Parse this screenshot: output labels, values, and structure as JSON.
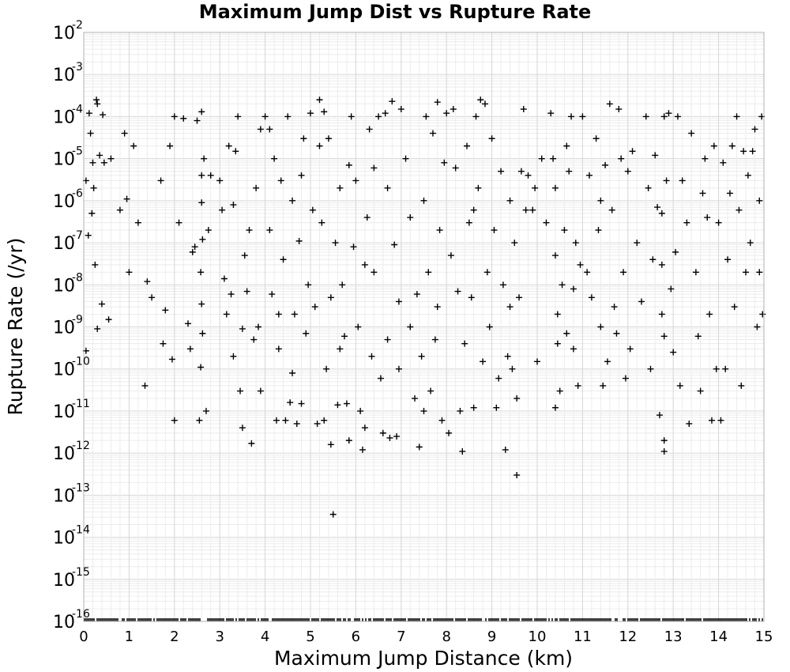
{
  "chart_data": {
    "type": "scatter",
    "title": "Maximum Jump Dist vs Rupture Rate",
    "xlabel": "Maximum Jump Distance (km)",
    "ylabel": "Rupture Rate (/yr)",
    "xlim": [
      0,
      15
    ],
    "ylim": [
      1e-16,
      0.01
    ],
    "y_scale": "log",
    "grid": true,
    "marker": "plus",
    "marker_color": "#000000",
    "x_ticks": [
      "0",
      "1",
      "2",
      "3",
      "4",
      "5",
      "6",
      "7",
      "8",
      "9",
      "10",
      "11",
      "12",
      "13",
      "14",
      "15"
    ],
    "y_ticks": [
      {
        "base": "10",
        "exp": "-2"
      },
      {
        "base": "10",
        "exp": "-3"
      },
      {
        "base": "10",
        "exp": "-4"
      },
      {
        "base": "10",
        "exp": "-5"
      },
      {
        "base": "10",
        "exp": "-6"
      },
      {
        "base": "10",
        "exp": "-7"
      },
      {
        "base": "10",
        "exp": "-8"
      },
      {
        "base": "10",
        "exp": "-9"
      },
      {
        "base": "10",
        "exp": "-10"
      },
      {
        "base": "10",
        "exp": "-11"
      },
      {
        "base": "10",
        "exp": "-12"
      },
      {
        "base": "10",
        "exp": "-13"
      },
      {
        "base": "10",
        "exp": "-14"
      },
      {
        "base": "10",
        "exp": "-15"
      },
      {
        "base": "10",
        "exp": "-16"
      }
    ],
    "points": [
      [
        0.12,
        0.00012
      ],
      [
        0.28,
        0.00025
      ],
      [
        0.3,
        0.0002
      ],
      [
        0.42,
        0.00011
      ],
      [
        0.15,
        4e-05
      ],
      [
        0.2,
        8e-06
      ],
      [
        0.35,
        1.2e-05
      ],
      [
        0.05,
        3e-06
      ],
      [
        0.18,
        5e-07
      ],
      [
        0.1,
        1.5e-07
      ],
      [
        0.25,
        3e-08
      ],
      [
        0.4,
        3.5e-09
      ],
      [
        0.3,
        9e-10
      ],
      [
        0.05,
        2.7e-10
      ],
      [
        0.55,
        1.5e-09
      ],
      [
        0.45,
        8e-06
      ],
      [
        0.22,
        2e-06
      ],
      [
        0.6,
        1e-05
      ],
      [
        0.9,
        4e-05
      ],
      [
        1.1,
        2e-05
      ],
      [
        0.95,
        1.1e-06
      ],
      [
        1.2,
        3e-07
      ],
      [
        1.4,
        1.2e-08
      ],
      [
        1.5,
        5e-09
      ],
      [
        1.35,
        4e-11
      ],
      [
        1.0,
        2e-08
      ],
      [
        0.8,
        6e-07
      ],
      [
        1.7,
        3e-06
      ],
      [
        1.9,
        2e-05
      ],
      [
        2.0,
        0.0001
      ],
      [
        2.2,
        9e-05
      ],
      [
        1.8,
        2.5e-09
      ],
      [
        2.0,
        6e-12
      ],
      [
        1.95,
        1.7e-10
      ],
      [
        2.3,
        1.2e-09
      ],
      [
        2.1,
        3e-07
      ],
      [
        1.75,
        4e-10
      ],
      [
        2.4,
        6e-08
      ],
      [
        2.5,
        8e-05
      ],
      [
        2.6,
        0.00013
      ],
      [
        2.65,
        1e-05
      ],
      [
        2.6,
        4e-06
      ],
      [
        2.6,
        9e-07
      ],
      [
        2.62,
        1.2e-07
      ],
      [
        2.58,
        2e-08
      ],
      [
        2.6,
        3.5e-09
      ],
      [
        2.62,
        7e-10
      ],
      [
        2.58,
        1.1e-10
      ],
      [
        2.55,
        6e-12
      ],
      [
        2.7,
        1e-11
      ],
      [
        2.8,
        4e-06
      ],
      [
        2.35,
        3e-10
      ],
      [
        2.45,
        8e-08
      ],
      [
        2.75,
        2e-07
      ],
      [
        3.0,
        3e-06
      ],
      [
        3.1,
        1.4e-08
      ],
      [
        3.2,
        2e-05
      ],
      [
        3.3,
        8e-07
      ],
      [
        3.35,
        1.5e-05
      ],
      [
        3.3,
        2e-10
      ],
      [
        3.4,
        0.0001
      ],
      [
        3.45,
        3e-11
      ],
      [
        3.5,
        4e-12
      ],
      [
        3.55,
        5e-08
      ],
      [
        3.6,
        7e-09
      ],
      [
        3.65,
        2e-07
      ],
      [
        3.7,
        1.7e-12
      ],
      [
        3.75,
        5e-10
      ],
      [
        3.8,
        2e-06
      ],
      [
        3.9,
        3e-11
      ],
      [
        3.9,
        5e-05
      ],
      [
        3.85,
        1e-09
      ],
      [
        3.5,
        9e-10
      ],
      [
        3.25,
        6e-09
      ],
      [
        3.15,
        2e-09
      ],
      [
        3.05,
        6e-07
      ],
      [
        4.0,
        0.0001
      ],
      [
        4.1,
        2e-07
      ],
      [
        4.15,
        6e-09
      ],
      [
        4.2,
        1e-05
      ],
      [
        4.25,
        6e-12
      ],
      [
        4.3,
        3e-10
      ],
      [
        4.35,
        3e-06
      ],
      [
        4.4,
        4e-08
      ],
      [
        4.45,
        6e-12
      ],
      [
        4.5,
        0.0001
      ],
      [
        4.55,
        1.6e-11
      ],
      [
        4.6,
        1e-06
      ],
      [
        4.65,
        2e-09
      ],
      [
        4.7,
        5e-12
      ],
      [
        4.75,
        1.1e-07
      ],
      [
        4.8,
        1.5e-11
      ],
      [
        4.85,
        3e-05
      ],
      [
        4.9,
        7e-10
      ],
      [
        4.95,
        1e-08
      ],
      [
        4.8,
        4e-06
      ],
      [
        4.6,
        8e-11
      ],
      [
        4.3,
        2e-09
      ],
      [
        4.1,
        5e-05
      ],
      [
        5.0,
        0.00012
      ],
      [
        5.05,
        6e-07
      ],
      [
        5.1,
        3e-09
      ],
      [
        5.15,
        5e-12
      ],
      [
        5.2,
        2e-05
      ],
      [
        5.25,
        3e-07
      ],
      [
        5.3,
        6e-12
      ],
      [
        5.35,
        1e-10
      ],
      [
        5.4,
        3e-05
      ],
      [
        5.45,
        1.6e-12
      ],
      [
        5.5,
        3.5e-14
      ],
      [
        5.55,
        1e-07
      ],
      [
        5.6,
        1.4e-11
      ],
      [
        5.65,
        2e-06
      ],
      [
        5.7,
        1e-08
      ],
      [
        5.75,
        6e-10
      ],
      [
        5.8,
        1.5e-11
      ],
      [
        5.85,
        2e-12
      ],
      [
        5.9,
        0.0001
      ],
      [
        5.95,
        8e-08
      ],
      [
        5.2,
        0.00025
      ],
      [
        5.3,
        0.00013
      ],
      [
        5.45,
        5e-09
      ],
      [
        5.65,
        3e-10
      ],
      [
        5.85,
        7e-06
      ],
      [
        6.0,
        3e-06
      ],
      [
        6.05,
        1e-09
      ],
      [
        6.1,
        1e-11
      ],
      [
        6.15,
        1.2e-12
      ],
      [
        6.2,
        4e-12
      ],
      [
        6.25,
        4e-07
      ],
      [
        6.3,
        5e-05
      ],
      [
        6.35,
        2e-10
      ],
      [
        6.4,
        2e-08
      ],
      [
        6.5,
        0.0001
      ],
      [
        6.55,
        6e-11
      ],
      [
        6.6,
        3e-12
      ],
      [
        6.65,
        0.00012
      ],
      [
        6.7,
        2e-06
      ],
      [
        6.75,
        2.3e-12
      ],
      [
        6.8,
        0.00023
      ],
      [
        6.85,
        9e-08
      ],
      [
        6.9,
        2.5e-12
      ],
      [
        6.95,
        4e-09
      ],
      [
        6.7,
        5e-10
      ],
      [
        6.4,
        6e-06
      ],
      [
        6.2,
        3e-08
      ],
      [
        6.95,
        1e-10
      ],
      [
        7.0,
        0.00015
      ],
      [
        7.1,
        1e-05
      ],
      [
        7.2,
        4e-07
      ],
      [
        7.3,
        2e-11
      ],
      [
        7.35,
        6e-09
      ],
      [
        7.4,
        1.4e-12
      ],
      [
        7.45,
        2e-10
      ],
      [
        7.5,
        1e-06
      ],
      [
        7.55,
        0.0001
      ],
      [
        7.6,
        2e-08
      ],
      [
        7.65,
        3e-11
      ],
      [
        7.7,
        4e-05
      ],
      [
        7.75,
        5e-10
      ],
      [
        7.8,
        0.00022
      ],
      [
        7.85,
        2e-07
      ],
      [
        7.9,
        6e-12
      ],
      [
        7.95,
        8e-06
      ],
      [
        7.2,
        1e-09
      ],
      [
        7.5,
        1e-11
      ],
      [
        7.8,
        3e-09
      ],
      [
        8.0,
        0.00012
      ],
      [
        8.05,
        3e-12
      ],
      [
        8.1,
        5e-08
      ],
      [
        8.15,
        0.00015
      ],
      [
        8.2,
        6e-06
      ],
      [
        8.3,
        1e-11
      ],
      [
        8.35,
        1.1e-12
      ],
      [
        8.4,
        4e-10
      ],
      [
        8.45,
        2e-05
      ],
      [
        8.5,
        3e-07
      ],
      [
        8.55,
        5e-09
      ],
      [
        8.6,
        1.2e-11
      ],
      [
        8.65,
        0.0001
      ],
      [
        8.7,
        2e-06
      ],
      [
        8.75,
        0.00025
      ],
      [
        8.8,
        1.5e-10
      ],
      [
        8.85,
        0.0002
      ],
      [
        8.9,
        2e-08
      ],
      [
        8.95,
        1e-09
      ],
      [
        8.25,
        7e-09
      ],
      [
        8.6,
        6e-07
      ],
      [
        9.0,
        3e-05
      ],
      [
        9.05,
        2e-07
      ],
      [
        9.1,
        1.2e-11
      ],
      [
        9.15,
        6e-11
      ],
      [
        9.2,
        5e-06
      ],
      [
        9.25,
        1e-08
      ],
      [
        9.3,
        1.2e-12
      ],
      [
        9.35,
        2e-10
      ],
      [
        9.4,
        1e-06
      ],
      [
        9.45,
        1e-10
      ],
      [
        9.5,
        1e-07
      ],
      [
        9.55,
        3e-13
      ],
      [
        9.6,
        5e-09
      ],
      [
        9.65,
        5e-06
      ],
      [
        9.7,
        0.00015
      ],
      [
        9.75,
        6e-07
      ],
      [
        9.8,
        4e-06
      ],
      [
        9.9,
        6e-07
      ],
      [
        9.95,
        2e-06
      ],
      [
        9.4,
        3e-09
      ],
      [
        9.55,
        2e-11
      ],
      [
        10.0,
        1.5e-10
      ],
      [
        10.1,
        1e-05
      ],
      [
        10.2,
        3e-07
      ],
      [
        10.3,
        0.00012
      ],
      [
        10.35,
        1e-05
      ],
      [
        10.4,
        2e-06
      ],
      [
        10.4,
        5e-08
      ],
      [
        10.45,
        2e-09
      ],
      [
        10.45,
        4e-10
      ],
      [
        10.4,
        1.2e-11
      ],
      [
        10.5,
        3e-11
      ],
      [
        10.55,
        1e-08
      ],
      [
        10.6,
        2e-07
      ],
      [
        10.65,
        2e-05
      ],
      [
        10.7,
        5e-06
      ],
      [
        10.75,
        0.0001
      ],
      [
        10.8,
        3e-10
      ],
      [
        10.85,
        1e-07
      ],
      [
        10.9,
        4e-11
      ],
      [
        10.95,
        3e-08
      ],
      [
        10.65,
        7e-10
      ],
      [
        10.8,
        8e-09
      ],
      [
        11.0,
        0.0001
      ],
      [
        11.1,
        2e-08
      ],
      [
        11.15,
        4e-06
      ],
      [
        11.2,
        5e-09
      ],
      [
        11.3,
        3e-05
      ],
      [
        11.35,
        2e-07
      ],
      [
        11.4,
        1e-09
      ],
      [
        11.45,
        4e-11
      ],
      [
        11.5,
        7e-06
      ],
      [
        11.55,
        1.5e-10
      ],
      [
        11.6,
        0.0002
      ],
      [
        11.65,
        6e-07
      ],
      [
        11.7,
        3e-09
      ],
      [
        11.8,
        0.00015
      ],
      [
        11.85,
        1e-05
      ],
      [
        11.9,
        2e-08
      ],
      [
        11.95,
        6e-11
      ],
      [
        11.4,
        1e-06
      ],
      [
        11.75,
        7e-10
      ],
      [
        12.0,
        5e-06
      ],
      [
        12.05,
        3e-10
      ],
      [
        12.1,
        1.5e-05
      ],
      [
        12.2,
        1e-07
      ],
      [
        12.3,
        4e-09
      ],
      [
        12.4,
        0.0001
      ],
      [
        12.45,
        2e-06
      ],
      [
        12.5,
        1e-10
      ],
      [
        12.55,
        4e-08
      ],
      [
        12.6,
        1.2e-05
      ],
      [
        12.65,
        7e-07
      ],
      [
        12.7,
        8e-12
      ],
      [
        12.75,
        2e-09
      ],
      [
        12.75,
        5e-07
      ],
      [
        12.8,
        0.0001
      ],
      [
        12.8,
        2e-12
      ],
      [
        12.8,
        1.1e-12
      ],
      [
        12.85,
        3e-06
      ],
      [
        12.9,
        0.00012
      ],
      [
        12.95,
        8e-09
      ],
      [
        12.8,
        6e-10
      ],
      [
        12.75,
        3e-08
      ],
      [
        13.0,
        2.5e-10
      ],
      [
        13.05,
        6e-08
      ],
      [
        13.1,
        0.0001
      ],
      [
        13.15,
        4e-11
      ],
      [
        13.2,
        3e-06
      ],
      [
        13.3,
        3e-07
      ],
      [
        13.35,
        5e-12
      ],
      [
        13.4,
        4e-05
      ],
      [
        13.5,
        2e-08
      ],
      [
        13.55,
        6e-10
      ],
      [
        13.6,
        3e-11
      ],
      [
        13.65,
        1.5e-06
      ],
      [
        13.7,
        1e-05
      ],
      [
        13.75,
        4e-07
      ],
      [
        13.8,
        2e-09
      ],
      [
        13.85,
        6e-12
      ],
      [
        13.9,
        2e-05
      ],
      [
        13.95,
        1e-10
      ],
      [
        14.0,
        3e-07
      ],
      [
        14.05,
        6e-12
      ],
      [
        14.1,
        8e-06
      ],
      [
        14.15,
        1e-10
      ],
      [
        14.2,
        4e-08
      ],
      [
        14.25,
        1.5e-06
      ],
      [
        14.3,
        2e-05
      ],
      [
        14.35,
        3e-09
      ],
      [
        14.4,
        0.0001
      ],
      [
        14.45,
        6e-07
      ],
      [
        14.5,
        4e-11
      ],
      [
        14.55,
        1.5e-05
      ],
      [
        14.6,
        2e-08
      ],
      [
        14.65,
        4e-06
      ],
      [
        14.7,
        1e-07
      ],
      [
        14.75,
        1.5e-05
      ],
      [
        14.8,
        5e-05
      ],
      [
        14.85,
        1e-09
      ],
      [
        14.9,
        1e-06
      ],
      [
        14.95,
        0.0001
      ],
      [
        14.97,
        2e-09
      ],
      [
        14.9,
        2e-08
      ]
    ]
  }
}
